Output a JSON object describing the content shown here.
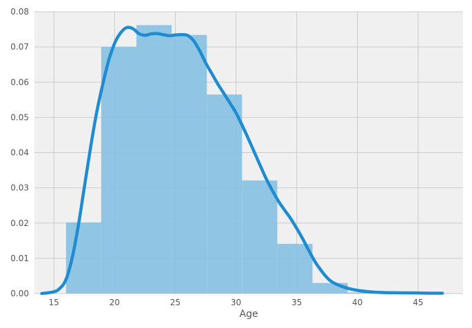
{
  "chart_data": {
    "type": "bar",
    "title": "",
    "xlabel": "Age",
    "ylabel": "",
    "xlim": [
      13.4,
      48.7
    ],
    "ylim": [
      0,
      0.08
    ],
    "x_ticks": [
      15,
      20,
      25,
      30,
      35,
      40,
      45
    ],
    "y_ticks": [
      "0.00",
      "0.01",
      "0.02",
      "0.03",
      "0.04",
      "0.05",
      "0.06",
      "0.07",
      "0.08"
    ],
    "grid": true,
    "style": "fivethirtyeight",
    "colors": {
      "background": "#f0f0f0",
      "grid": "#cbcbcb",
      "bars": "#88c1e3",
      "kde_line": "#1f8bd1",
      "text": "#555555"
    },
    "histogram": {
      "bins": [
        {
          "x0": 16.0,
          "x1": 18.9,
          "value": 0.0202
        },
        {
          "x0": 18.9,
          "x1": 21.8,
          "value": 0.07
        },
        {
          "x0": 21.8,
          "x1": 24.7,
          "value": 0.0762
        },
        {
          "x0": 24.7,
          "x1": 27.6,
          "value": 0.0734
        },
        {
          "x0": 27.6,
          "x1": 30.5,
          "value": 0.0565
        },
        {
          "x0": 30.5,
          "x1": 33.4,
          "value": 0.0321
        },
        {
          "x0": 33.4,
          "x1": 36.3,
          "value": 0.0141
        },
        {
          "x0": 36.3,
          "x1": 39.2,
          "value": 0.003
        },
        {
          "x0": 39.2,
          "x1": 42.1,
          "value": 0.0003
        },
        {
          "x0": 42.1,
          "x1": 45.0,
          "value": 0.0001
        },
        {
          "x0": 45.0,
          "x1": 47.9,
          "value": 0.0001
        }
      ]
    },
    "kde": {
      "x": [
        14.0,
        15.0,
        15.5,
        16.0,
        16.5,
        17.0,
        17.5,
        18.0,
        18.5,
        19.0,
        19.5,
        20.0,
        20.5,
        21.0,
        21.5,
        22.0,
        22.5,
        23.0,
        23.5,
        24.0,
        24.5,
        25.0,
        25.5,
        26.0,
        26.5,
        27.0,
        27.5,
        28.0,
        28.5,
        29.0,
        29.5,
        30.0,
        30.5,
        31.0,
        31.5,
        32.0,
        32.5,
        33.0,
        33.5,
        34.0,
        34.5,
        35.0,
        35.5,
        36.0,
        36.5,
        37.0,
        37.5,
        38.0,
        39.0,
        40.0,
        41.0,
        42.0,
        44.0,
        46.0,
        47.0
      ],
      "y": [
        0.0,
        0.0005,
        0.0015,
        0.004,
        0.01,
        0.019,
        0.03,
        0.041,
        0.051,
        0.059,
        0.066,
        0.071,
        0.074,
        0.0755,
        0.0752,
        0.0738,
        0.0733,
        0.0737,
        0.0738,
        0.0735,
        0.0732,
        0.0734,
        0.0735,
        0.0733,
        0.0718,
        0.069,
        0.0655,
        0.0625,
        0.0595,
        0.0568,
        0.0541,
        0.0513,
        0.0478,
        0.0441,
        0.0402,
        0.0363,
        0.0325,
        0.0292,
        0.0262,
        0.0237,
        0.0213,
        0.0185,
        0.0155,
        0.0122,
        0.0091,
        0.0066,
        0.0045,
        0.0031,
        0.0017,
        0.0009,
        0.0005,
        0.0003,
        0.0002,
        0.0001,
        0.0001
      ]
    }
  }
}
